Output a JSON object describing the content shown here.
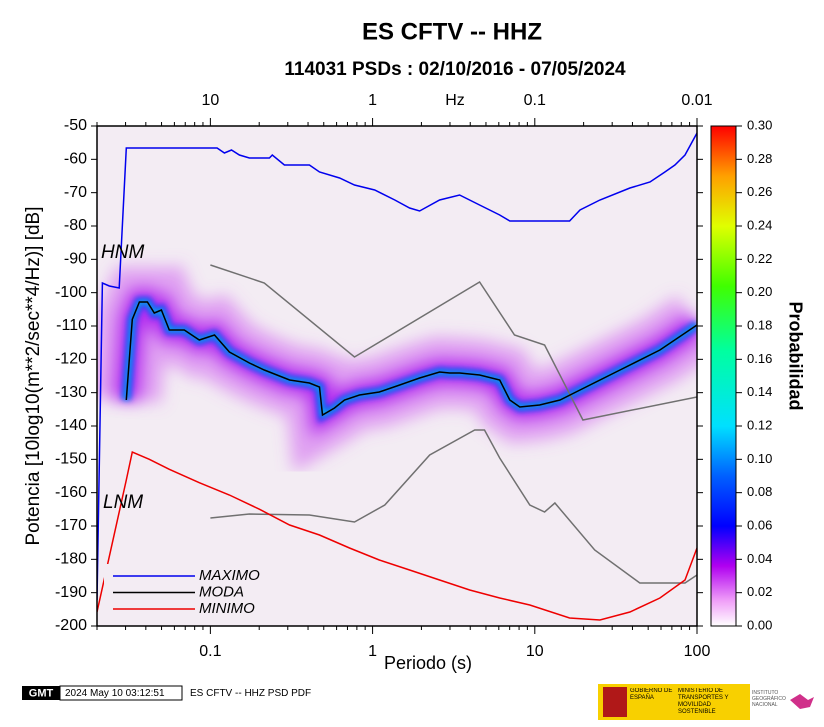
{
  "chart_data": {
    "type": "line",
    "title": "ES CFTV -- HHZ",
    "subtitle": "114031 PSDs : 02/10/2016 - 07/05/2024",
    "x_label": "Periodo (s)",
    "y_label": "Potencia [10log10(m**2/sec**4/Hz)] [dB]",
    "log_x": true,
    "xlim": [
      0.02,
      100
    ],
    "xticks": [
      0.1,
      1,
      10,
      100
    ],
    "ylim": [
      -200,
      -50
    ],
    "yticks": [
      -200,
      -190,
      -180,
      -170,
      -160,
      -150,
      -140,
      -130,
      -120,
      -110,
      -100,
      -90,
      -80,
      -70,
      -60,
      -50
    ],
    "top_axis": {
      "ticks": [
        10,
        1,
        0.1,
        0.01
      ],
      "label": "Hz"
    },
    "legend": "lower left",
    "series": [
      {
        "name": "MAXIMO",
        "color": "#0000ee",
        "x": [
          0.02,
          0.0216,
          0.0238,
          0.0274,
          0.0303,
          0.11,
          0.122,
          0.135,
          0.151,
          0.174,
          0.231,
          0.241,
          0.286,
          0.408,
          0.471,
          0.626,
          0.774,
          1.03,
          1.37,
          1.69,
          1.95,
          2.59,
          3.44,
          4.57,
          6.08,
          7.01,
          16.4,
          19.0,
          25.2,
          38.6,
          51.3,
          63.4,
          73.1,
          84.3,
          100
        ],
        "values": [
          -192.2,
          -97.1,
          -98,
          -98.6,
          -56.6,
          -56.6,
          -58.1,
          -57.2,
          -58.7,
          -59.6,
          -59.6,
          -58.7,
          -61.7,
          -61.7,
          -63.8,
          -65.6,
          -67.7,
          -69.2,
          -72.2,
          -74.6,
          -75.5,
          -72.2,
          -70.7,
          -73.7,
          -76.7,
          -78.5,
          -78.5,
          -75.2,
          -72.2,
          -68.6,
          -66.8,
          -63.8,
          -61.7,
          -58.7,
          -52.1
        ]
      },
      {
        "name": "MODA",
        "color": "#000000",
        "x": [
          0.0303,
          0.033,
          0.0365,
          0.0409,
          0.0451,
          0.0499,
          0.0558,
          0.0691,
          0.0855,
          0.106,
          0.131,
          0.174,
          0.215,
          0.308,
          0.408,
          0.471,
          0.491,
          0.582,
          0.671,
          0.831,
          1.1,
          1.47,
          1.95,
          2.59,
          2.99,
          3.44,
          4.57,
          6.08,
          7.01,
          8.08,
          10.7,
          14.3,
          19.0,
          33.5,
          59.1,
          100
        ],
        "values": [
          -132.2,
          -108,
          -102.8,
          -102.8,
          -106.1,
          -105.2,
          -111.2,
          -111.2,
          -114.2,
          -112.7,
          -117.8,
          -121.1,
          -123.2,
          -126.2,
          -127.1,
          -128.3,
          -136.7,
          -134.6,
          -132.2,
          -130.7,
          -129.8,
          -127.7,
          -125.6,
          -123.8,
          -124.1,
          -124.1,
          -124.7,
          -126.2,
          -132.2,
          -134.3,
          -133.7,
          -132.2,
          -129.2,
          -123.2,
          -117.2,
          -109.7
        ]
      },
      {
        "name": "MINIMO",
        "color": "#ee0000",
        "x": [
          0.02,
          0.0303,
          0.033,
          0.042,
          0.0558,
          0.0855,
          0.131,
          0.201,
          0.308,
          0.471,
          0.721,
          1.1,
          1.69,
          2.59,
          3.97,
          6.08,
          9.31,
          16.4,
          25.2,
          38.6,
          59.1,
          84.3,
          100
        ],
        "values": [
          -195.8,
          -156.2,
          -147.8,
          -150,
          -153,
          -157,
          -160.7,
          -165,
          -169.7,
          -172.7,
          -176.6,
          -180.2,
          -183.2,
          -186.2,
          -189.2,
          -191.6,
          -193.7,
          -197.6,
          -198.2,
          -195.8,
          -191.6,
          -186.2,
          -176.6
        ]
      }
    ],
    "reference_lines": [
      {
        "name": "HNM",
        "color": "#707070",
        "x": [
          0.1,
          0.215,
          0.774,
          4.57,
          7.5,
          11.5,
          19.8,
          100
        ],
        "values": [
          -91.7,
          -97.1,
          -119.3,
          -96.8,
          -112.7,
          -115.7,
          -138.2,
          -131.3
        ]
      },
      {
        "name": "LNM",
        "color": "#707070",
        "x": [
          0.1,
          0.174,
          0.408,
          0.774,
          1.19,
          2.25,
          4.26,
          4.9,
          6.08,
          9.31,
          11.5,
          13.3,
          23.4,
          44.4,
          84.3,
          100
        ],
        "values": [
          -167.6,
          -166.4,
          -166.7,
          -168.8,
          -163.7,
          -148.7,
          -141.2,
          -141.2,
          -149.6,
          -163.7,
          -165.8,
          -163.1,
          -177.2,
          -187.1,
          -187.1,
          -184.7
        ]
      }
    ],
    "colorbar": {
      "label": "Probabilidad",
      "lim": [
        0,
        0.3
      ],
      "ticks": [
        {
          "value": 0,
          "label": "0.00"
        },
        {
          "value": 0.02,
          "label": "0.02"
        },
        {
          "value": 0.04,
          "label": "0.04"
        },
        {
          "value": 0.06,
          "label": "0.06"
        },
        {
          "value": 0.08,
          "label": "0.08"
        },
        {
          "value": 0.1,
          "label": "0.10"
        },
        {
          "value": 0.12,
          "label": "0.12"
        },
        {
          "value": 0.14,
          "label": "0.14"
        },
        {
          "value": 0.16,
          "label": "0.16"
        },
        {
          "value": 0.18,
          "label": "0.18"
        },
        {
          "value": 0.2,
          "label": "0.20"
        },
        {
          "value": 0.22,
          "label": "0.22"
        },
        {
          "value": 0.24,
          "label": "0.24"
        },
        {
          "value": 0.26,
          "label": "0.26"
        },
        {
          "value": 0.28,
          "label": "0.28"
        },
        {
          "value": 0.3,
          "label": "0.30"
        }
      ]
    }
  },
  "footer": {
    "logo": "GMT",
    "timestamp": "2024 May 10 03:12:51",
    "caption": "ES CFTV -- HHZ PSD PDF",
    "gov": "GOBIERNO DE ESPAÑA",
    "ministry": "MINISTERIO DE TRANSPORTES Y MOVILIDAD SOSTENIBLE",
    "institute": "INSTITUTO GEOGRÁFICO NACIONAL"
  }
}
